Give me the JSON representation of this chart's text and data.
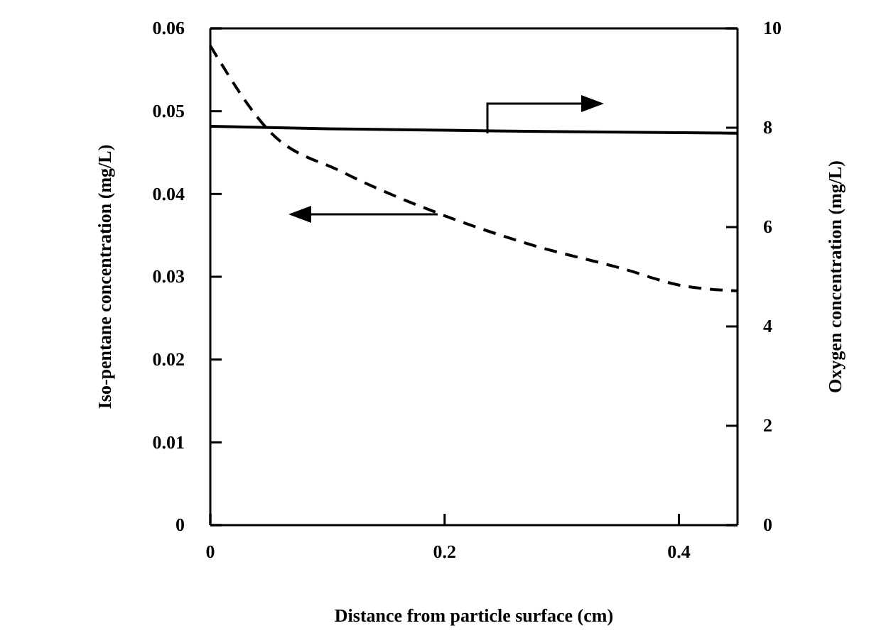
{
  "chart_data": {
    "type": "line",
    "xlabel": "Distance from particle surface (cm)",
    "ylabel": "Iso-pentane concentration (mg/L)",
    "y2label": "Oxygen concentration (mg/L)",
    "xlim": [
      0,
      0.45
    ],
    "xticks": [
      0,
      0.2,
      0.4
    ],
    "ylim": [
      0,
      0.06
    ],
    "yticks": [
      0,
      0.01,
      0.02,
      0.03,
      0.04,
      0.05,
      0.06
    ],
    "y2lim": [
      0,
      10
    ],
    "y2ticks": [
      0,
      2,
      4,
      6,
      8,
      10
    ],
    "series": [
      {
        "color": "#000000",
        "line_style": "dashed",
        "x": [
          0,
          0.051,
          0.112,
          0.194,
          0.273,
          0.354,
          0.4,
          0.45
        ],
        "values": [
          0.0579,
          0.0475,
          0.0427,
          0.0377,
          0.0339,
          0.0309,
          0.029,
          0.0283
        ]
      },
      {
        "color": "#000000",
        "line_style": "solid",
        "axis": "y2",
        "x": [
          0,
          0.1,
          0.2,
          0.3,
          0.45
        ],
        "values": [
          8.03,
          7.98,
          7.95,
          7.92,
          7.89
        ]
      }
    ],
    "marker": "none",
    "grid": false
  }
}
